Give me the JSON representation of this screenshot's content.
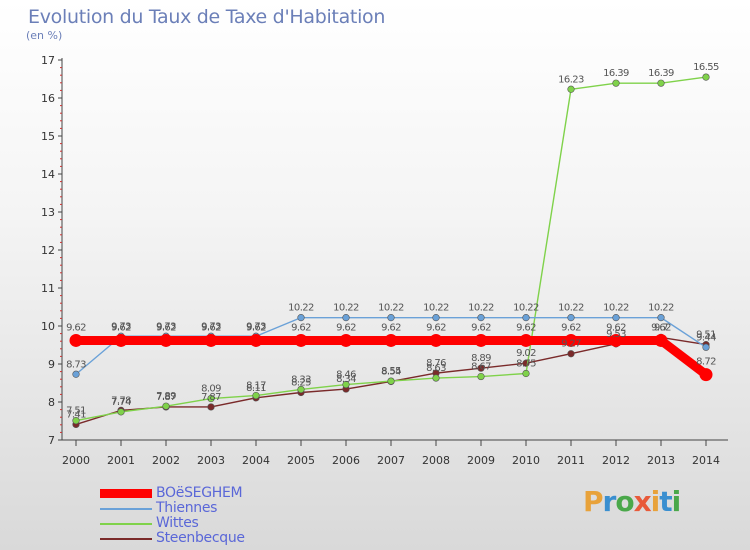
{
  "chart_data": {
    "type": "line",
    "title": "Evolution du Taux de Taxe d'Habitation",
    "ylabel": "(en %)",
    "ylim": [
      7,
      17
    ],
    "yticks": [
      7,
      8,
      9,
      10,
      11,
      12,
      13,
      14,
      15,
      16,
      17
    ],
    "categories": [
      "2000",
      "2001",
      "2002",
      "2003",
      "2004",
      "2005",
      "2006",
      "2007",
      "2008",
      "2009",
      "2010",
      "2011",
      "2012",
      "2013",
      "2014"
    ],
    "legend_position": "bottom-left",
    "series": [
      {
        "name": "BOëSEGHEM",
        "color": "#ff0000",
        "values": [
          9.62,
          9.62,
          9.62,
          9.62,
          9.62,
          9.62,
          9.62,
          9.62,
          9.62,
          9.62,
          9.62,
          9.62,
          9.62,
          9.62,
          8.72
        ],
        "labels": [
          "9.62",
          "9.62",
          "9.62",
          "9.62",
          "9.62",
          "9.62",
          "9.62",
          "9.62",
          "9.62",
          "9.62",
          "9.62",
          "9.62",
          "9.62",
          "9.62",
          "8.72"
        ]
      },
      {
        "name": "Thiennes",
        "color": "#6aa1d8",
        "values": [
          8.73,
          9.73,
          9.73,
          9.73,
          9.73,
          10.22,
          10.22,
          10.22,
          10.22,
          10.22,
          10.22,
          10.22,
          10.22,
          10.22,
          9.44
        ],
        "labels": [
          "8.73",
          "9.73",
          "9.73",
          "9.73",
          "9.73",
          "10.22",
          "10.22",
          "10.22",
          "10.22",
          "10.22",
          "10.22",
          "10.22",
          "10.22",
          "10.22",
          "9.44"
        ]
      },
      {
        "name": "Wittes",
        "color": "#7fd24a",
        "values": [
          7.51,
          7.74,
          7.89,
          8.09,
          8.17,
          8.33,
          8.46,
          8.55,
          8.63,
          8.67,
          8.75,
          16.23,
          16.39,
          16.39,
          16.55
        ],
        "labels": [
          "7.51",
          "7.74",
          "7.89",
          "8.09",
          "8.17",
          "8.33",
          "8.46",
          "8.55",
          "8.63",
          "8.67",
          "8.75",
          "16.23",
          "16.39",
          "16.39",
          "16.55"
        ]
      },
      {
        "name": "Steenbecque",
        "color": "#7a2a2a",
        "values": [
          7.41,
          7.78,
          7.87,
          7.87,
          8.11,
          8.25,
          8.34,
          8.54,
          8.76,
          8.89,
          9.02,
          9.27,
          9.53,
          9.7,
          9.51
        ],
        "labels": [
          "7.41",
          "7.78",
          "7.87",
          "7.87",
          "8.11",
          "8.25",
          "8.34",
          "8.54",
          "8.76",
          "8.89",
          "9.02",
          "9.27",
          "9.53",
          "9.7",
          "9.51"
        ]
      }
    ]
  },
  "logo": {
    "text": "Proxiti",
    "colors": [
      "#e8a23a",
      "#3a8fd0",
      "#4aa84a",
      "#e85a3a"
    ]
  }
}
